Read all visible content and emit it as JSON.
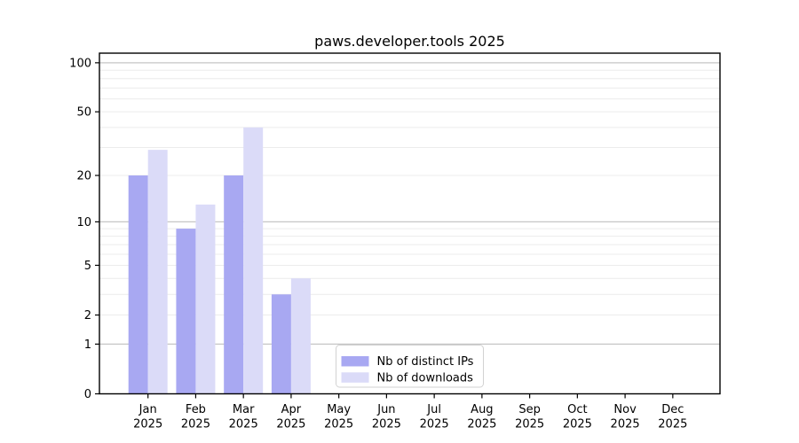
{
  "chart_data": {
    "type": "bar",
    "title": "paws.developer.tools 2025",
    "categories": [
      "Jan",
      "Feb",
      "Mar",
      "Apr",
      "May",
      "Jun",
      "Jul",
      "Aug",
      "Sep",
      "Oct",
      "Nov",
      "Dec"
    ],
    "x_year_label": "2025",
    "series": [
      {
        "name": "Nb of distinct IPs",
        "color": "#a8a8f2",
        "values": [
          20,
          9,
          20,
          3,
          0,
          0,
          0,
          0,
          0,
          0,
          0,
          0
        ]
      },
      {
        "name": "Nb of downloads",
        "color": "#dbdbf8",
        "values": [
          29,
          13,
          40,
          4,
          0,
          0,
          0,
          0,
          0,
          0,
          0,
          0
        ]
      }
    ],
    "yscale": "log1p",
    "ylim": [
      0,
      114.5
    ],
    "ytick_labels": [
      "0",
      "1",
      "2",
      "5",
      "10",
      "20",
      "50",
      "100"
    ],
    "ytick_values": [
      0,
      1,
      2,
      5,
      10,
      20,
      50,
      100
    ],
    "major_gridlines": [
      1,
      10,
      100
    ],
    "minor_gridlines": [
      2,
      3,
      4,
      5,
      6,
      7,
      8,
      9,
      20,
      30,
      40,
      50,
      60,
      70,
      80,
      90
    ],
    "grid": true,
    "legend": {
      "position": "lower-center"
    },
    "colors": {
      "major_grid": "#c6c6c6",
      "minor_grid": "#ececec",
      "axis": "#000000",
      "legend_border": "#d2d2d2",
      "background": "#ffffff"
    }
  }
}
